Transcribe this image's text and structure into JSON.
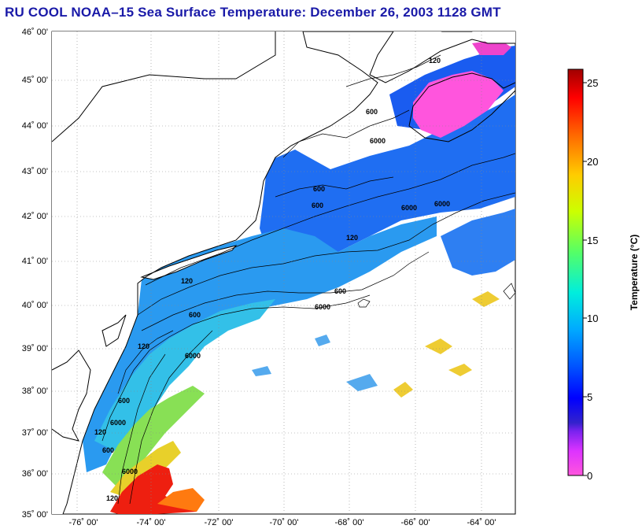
{
  "title": "RU COOL  NOAA–15  Sea Surface Temperature:  December 26, 2003 1128 GMT",
  "map": {
    "lat_labels": [
      "46˚ 00'",
      "45˚ 00'",
      "44˚ 00'",
      "43˚ 00'",
      "42˚ 00'",
      "41˚ 00'",
      "40˚ 00'",
      "39˚ 00'",
      "38˚ 00'",
      "37˚ 00'",
      "36˚ 00'",
      "35˚ 00'"
    ],
    "lon_labels": [
      "-76˚ 00'",
      "-74˚ 00'",
      "-72˚ 00'",
      "-70˚ 00'",
      "-68˚ 00'",
      "-66˚ 00'",
      "-64˚ 00'"
    ],
    "contour_labels": [
      "120",
      "600",
      "6000",
      "600",
      "600",
      "6000",
      "6000",
      "120",
      "600",
      "6000",
      "120",
      "600",
      "6000",
      "120",
      "600",
      "6000",
      "120",
      "600",
      "6000",
      "120"
    ],
    "colors": {
      "land": "#ffffff",
      "coastline": "#000000",
      "cloud": "#ffffff"
    }
  },
  "colorbar": {
    "title": "Temperature (°C)",
    "ticks": [
      "0",
      "5",
      "10",
      "15",
      "20",
      "25"
    ],
    "range": [
      0,
      26
    ],
    "colors": [
      "#ff66cc",
      "#cc33ff",
      "#3333cc",
      "#0000ff",
      "#0066ff",
      "#00ccff",
      "#00ffcc",
      "#66ff66",
      "#ccff00",
      "#ffcc00",
      "#ff6600",
      "#ff0000",
      "#a00000"
    ]
  }
}
